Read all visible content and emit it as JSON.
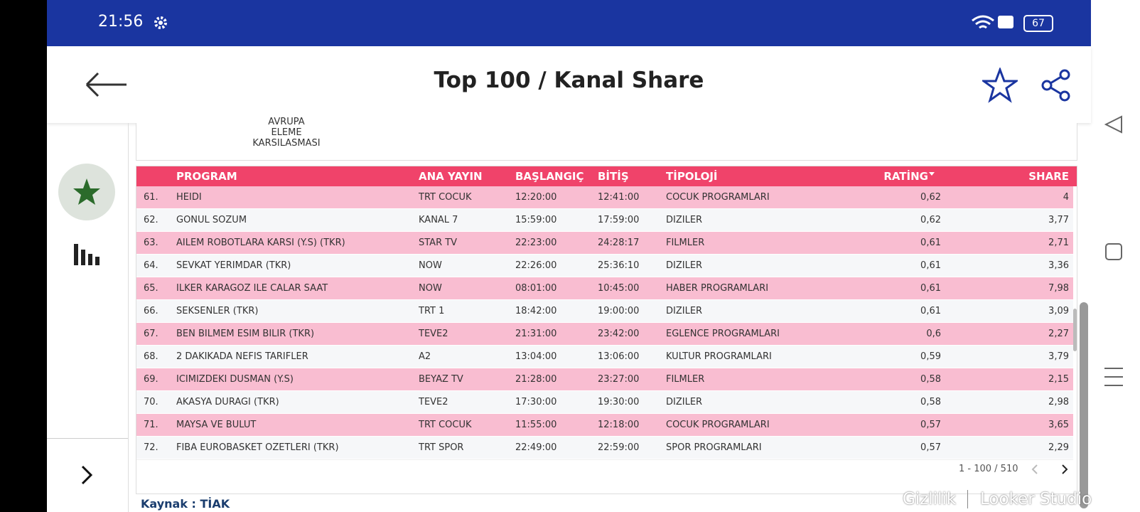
{
  "status_bar": {
    "time": "21:56",
    "battery": "67"
  },
  "header": {
    "title": "Top 100  / Kanal Share"
  },
  "previous_card": {
    "lines": [
      "AVRUPA",
      "ELEME",
      "KARSILASMASI"
    ]
  },
  "table": {
    "headers": [
      "PROGRAM",
      "ANA YAYIN",
      "BAŞLANGIÇ",
      "BİTİŞ",
      "TİPOLOJİ",
      "RATİNG",
      "SHARE"
    ],
    "rows": [
      [
        "61.",
        "HEIDI",
        "TRT COCUK",
        "12:20:00",
        "12:41:00",
        "COCUK PROGRAMLARI",
        "0,62",
        "4"
      ],
      [
        "62.",
        "GONUL SOZUM",
        "KANAL 7",
        "15:59:00",
        "17:59:00",
        "DIZILER",
        "0,62",
        "3,77"
      ],
      [
        "63.",
        "AILEM ROBOTLARA KARSI (Y.S) (TKR)",
        "STAR TV",
        "22:23:00",
        "24:28:17",
        "FILMLER",
        "0,61",
        "2,71"
      ],
      [
        "64.",
        "SEVKAT YERIMDAR (TKR)",
        "NOW",
        "22:26:00",
        "25:36:10",
        "DIZILER",
        "0,61",
        "3,36"
      ],
      [
        "65.",
        "ILKER KARAGOZ ILE CALAR SAAT",
        "NOW",
        "08:01:00",
        "10:45:00",
        "HABER PROGRAMLARI",
        "0,61",
        "7,98"
      ],
      [
        "66.",
        "SEKSENLER (TKR)",
        "TRT 1",
        "18:42:00",
        "19:00:00",
        "DIZILER",
        "0,61",
        "3,09"
      ],
      [
        "67.",
        "BEN BILMEM ESIM BILIR (TKR)",
        "TEVE2",
        "21:31:00",
        "23:42:00",
        "EGLENCE PROGRAMLARI",
        "0,6",
        "2,27"
      ],
      [
        "68.",
        "2 DAKIKADA NEFIS TARIFLER",
        "A2",
        "13:04:00",
        "13:06:00",
        "KULTUR PROGRAMLARI",
        "0,59",
        "3,79"
      ],
      [
        "69.",
        "ICIMIZDEKI DUSMAN (Y.S)",
        "BEYAZ TV",
        "21:28:00",
        "23:27:00",
        "FILMLER",
        "0,58",
        "2,15"
      ],
      [
        "70.",
        "AKASYA DURAGI (TKR)",
        "TEVE2",
        "17:30:00",
        "19:30:00",
        "DIZILER",
        "0,58",
        "2,98"
      ],
      [
        "71.",
        "MAYSA VE BULUT",
        "TRT COCUK",
        "11:55:00",
        "12:18:00",
        "COCUK PROGRAMLARI",
        "0,57",
        "3,65"
      ],
      [
        "72.",
        "FIBA EUROBASKET OZETLERI (TKR)",
        "TRT SPOR",
        "22:49:00",
        "22:59:00",
        "SPOR PROGRAMLARI",
        "0,57",
        "2,29"
      ]
    ],
    "pagination": "1 - 100 / 510"
  },
  "footer": {
    "source": "Kaynak : TİAK",
    "privacy": "Gizlilik",
    "brand": "Looker Studio"
  }
}
